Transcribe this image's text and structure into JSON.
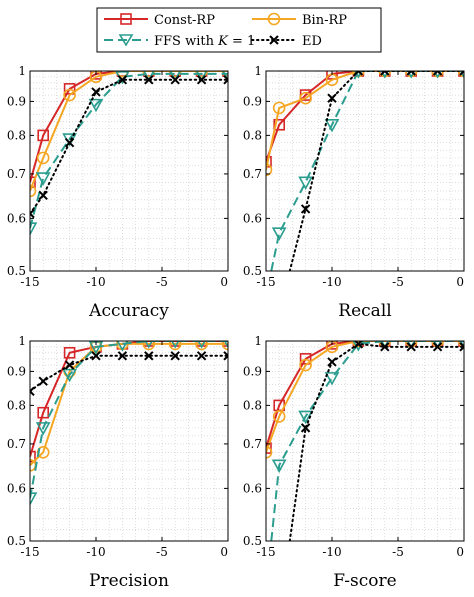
{
  "legend": {
    "entries": [
      {
        "label": "Const-RP"
      },
      {
        "label": "Bin-RP"
      },
      {
        "label_prefix": "FFS with ",
        "label_var": "K",
        "label_suffix": " = 1"
      },
      {
        "label": "ED"
      }
    ]
  },
  "styles": {
    "const_rp": {
      "color": "#d62728",
      "marker": "square",
      "dash": "solid"
    },
    "bin_rp": {
      "color": "#f5a623",
      "marker": "circle",
      "dash": "solid"
    },
    "ffs": {
      "color": "#2a9d8f",
      "marker": "triangle-down",
      "dash": "dashed"
    },
    "ed": {
      "color": "#000000",
      "marker": "x",
      "dash": "dotted"
    }
  },
  "chart_data": [
    {
      "type": "line",
      "xlabel": "Accuracy",
      "xlim": [
        -15,
        0
      ],
      "ylim": [
        0.5,
        1
      ],
      "yscale": "log",
      "grid": true,
      "xticks": [
        "-15",
        "-10",
        "-5",
        "0"
      ],
      "yticks": [
        "0.5",
        "0.6",
        "0.7",
        "0.8",
        "0.9",
        "1"
      ],
      "series": [
        {
          "key": "const_rp",
          "x": [
            -15,
            -14,
            -12,
            -10,
            -8,
            -6,
            -4,
            -2,
            0
          ],
          "y": [
            0.68,
            0.8,
            0.94,
            0.99,
            1.0,
            1.0,
            1.0,
            1.0,
            1.0
          ]
        },
        {
          "key": "bin_rp",
          "x": [
            -15,
            -14,
            -12,
            -10,
            -8,
            -6,
            -4,
            -2,
            0
          ],
          "y": [
            0.66,
            0.74,
            0.92,
            0.98,
            1.0,
            1.0,
            1.0,
            1.0,
            1.0
          ]
        },
        {
          "key": "ffs",
          "x": [
            -15,
            -14,
            -12,
            -10,
            -8,
            -6,
            -4,
            -2,
            0
          ],
          "y": [
            0.58,
            0.69,
            0.79,
            0.89,
            0.98,
            0.99,
            0.99,
            0.99,
            0.99
          ]
        },
        {
          "key": "ed",
          "x": [
            -15,
            -14,
            -12,
            -10,
            -8,
            -6,
            -4,
            -2,
            0
          ],
          "y": [
            0.61,
            0.65,
            0.78,
            0.93,
            0.97,
            0.97,
            0.97,
            0.97,
            0.97
          ]
        }
      ]
    },
    {
      "type": "line",
      "xlabel": "Recall",
      "xlim": [
        -15,
        0
      ],
      "ylim": [
        0.5,
        1
      ],
      "yscale": "log",
      "grid": true,
      "xticks": [
        "-15",
        "-10",
        "-5",
        "0"
      ],
      "yticks": [
        "0.5",
        "0.6",
        "0.7",
        "0.8",
        "0.9",
        "1"
      ],
      "series": [
        {
          "key": "const_rp",
          "x": [
            -15,
            -14,
            -12,
            -10,
            -8,
            -6,
            -4,
            -2,
            0
          ],
          "y": [
            0.73,
            0.83,
            0.92,
            0.99,
            1.0,
            1.0,
            1.0,
            1.0,
            1.0
          ]
        },
        {
          "key": "bin_rp",
          "x": [
            -15,
            -14,
            -12,
            -10,
            -8,
            -6,
            -4,
            -2,
            0
          ],
          "y": [
            0.71,
            0.88,
            0.91,
            0.97,
            1.0,
            1.0,
            1.0,
            1.0,
            1.0
          ]
        },
        {
          "key": "ffs",
          "x": [
            -14.6,
            -14,
            -12,
            -10,
            -8,
            -6,
            -4,
            -2,
            0
          ],
          "y": [
            0.5,
            0.57,
            0.68,
            0.83,
            1.0,
            1.0,
            1.0,
            1.0,
            1.0
          ]
        },
        {
          "key": "ed",
          "x": [
            -13.2,
            -12,
            -10,
            -8,
            -6,
            -4,
            -2,
            0
          ],
          "y": [
            0.5,
            0.62,
            0.91,
            1.0,
            1.0,
            1.0,
            1.0,
            1.0
          ]
        }
      ]
    },
    {
      "type": "line",
      "xlabel": "Precision",
      "xlim": [
        -15,
        0
      ],
      "ylim": [
        0.5,
        1
      ],
      "yscale": "log",
      "grid": true,
      "xticks": [
        "-15",
        "-10",
        "-5",
        "0"
      ],
      "yticks": [
        "0.5",
        "0.6",
        "0.7",
        "0.8",
        "0.9",
        "1"
      ],
      "series": [
        {
          "key": "const_rp",
          "x": [
            -15,
            -14,
            -12,
            -10,
            -8,
            -6,
            -4,
            -2,
            0
          ],
          "y": [
            0.67,
            0.78,
            0.96,
            0.98,
            0.99,
            1.0,
            1.0,
            1.0,
            1.0
          ]
        },
        {
          "key": "bin_rp",
          "x": [
            -15,
            -14,
            -12,
            -10,
            -8,
            -6,
            -4,
            -2,
            0
          ],
          "y": [
            0.65,
            0.68,
            0.9,
            0.98,
            0.99,
            0.99,
            0.99,
            0.99,
            0.99
          ]
        },
        {
          "key": "ffs",
          "x": [
            -15,
            -14,
            -12,
            -10,
            -8,
            -6,
            -4,
            -2,
            0
          ],
          "y": [
            0.58,
            0.74,
            0.89,
            0.98,
            0.99,
            1.0,
            1.0,
            1.0,
            1.0
          ]
        },
        {
          "key": "ed",
          "x": [
            -15,
            -14,
            -12,
            -10,
            -8,
            -6,
            -4,
            -2,
            0
          ],
          "y": [
            0.84,
            0.87,
            0.92,
            0.95,
            0.95,
            0.95,
            0.95,
            0.95,
            0.95
          ]
        }
      ]
    },
    {
      "type": "line",
      "xlabel": "F-score",
      "xlim": [
        -15,
        0
      ],
      "ylim": [
        0.5,
        1
      ],
      "yscale": "log",
      "grid": true,
      "xticks": [
        "-15",
        "-10",
        "-5",
        "0"
      ],
      "yticks": [
        "0.5",
        "0.6",
        "0.7",
        "0.8",
        "0.9",
        "1"
      ],
      "series": [
        {
          "key": "const_rp",
          "x": [
            -15,
            -14,
            -12,
            -10,
            -8,
            -6,
            -4,
            -2,
            0
          ],
          "y": [
            0.69,
            0.8,
            0.94,
            0.99,
            1.0,
            1.0,
            1.0,
            1.0,
            1.0
          ]
        },
        {
          "key": "bin_rp",
          "x": [
            -15,
            -14,
            -12,
            -10,
            -8,
            -6,
            -4,
            -2,
            0
          ],
          "y": [
            0.68,
            0.77,
            0.92,
            0.98,
            1.0,
            1.0,
            1.0,
            1.0,
            1.0
          ]
        },
        {
          "key": "ffs",
          "x": [
            -14.6,
            -14,
            -12,
            -10,
            -8,
            -6,
            -4,
            -2,
            0
          ],
          "y": [
            0.5,
            0.65,
            0.77,
            0.88,
            0.99,
            1.0,
            1.0,
            1.0,
            1.0
          ]
        },
        {
          "key": "ed",
          "x": [
            -13.2,
            -12,
            -10,
            -8,
            -6,
            -4,
            -2,
            0
          ],
          "y": [
            0.5,
            0.74,
            0.93,
            0.99,
            0.98,
            0.98,
            0.98,
            0.98
          ]
        }
      ]
    }
  ]
}
